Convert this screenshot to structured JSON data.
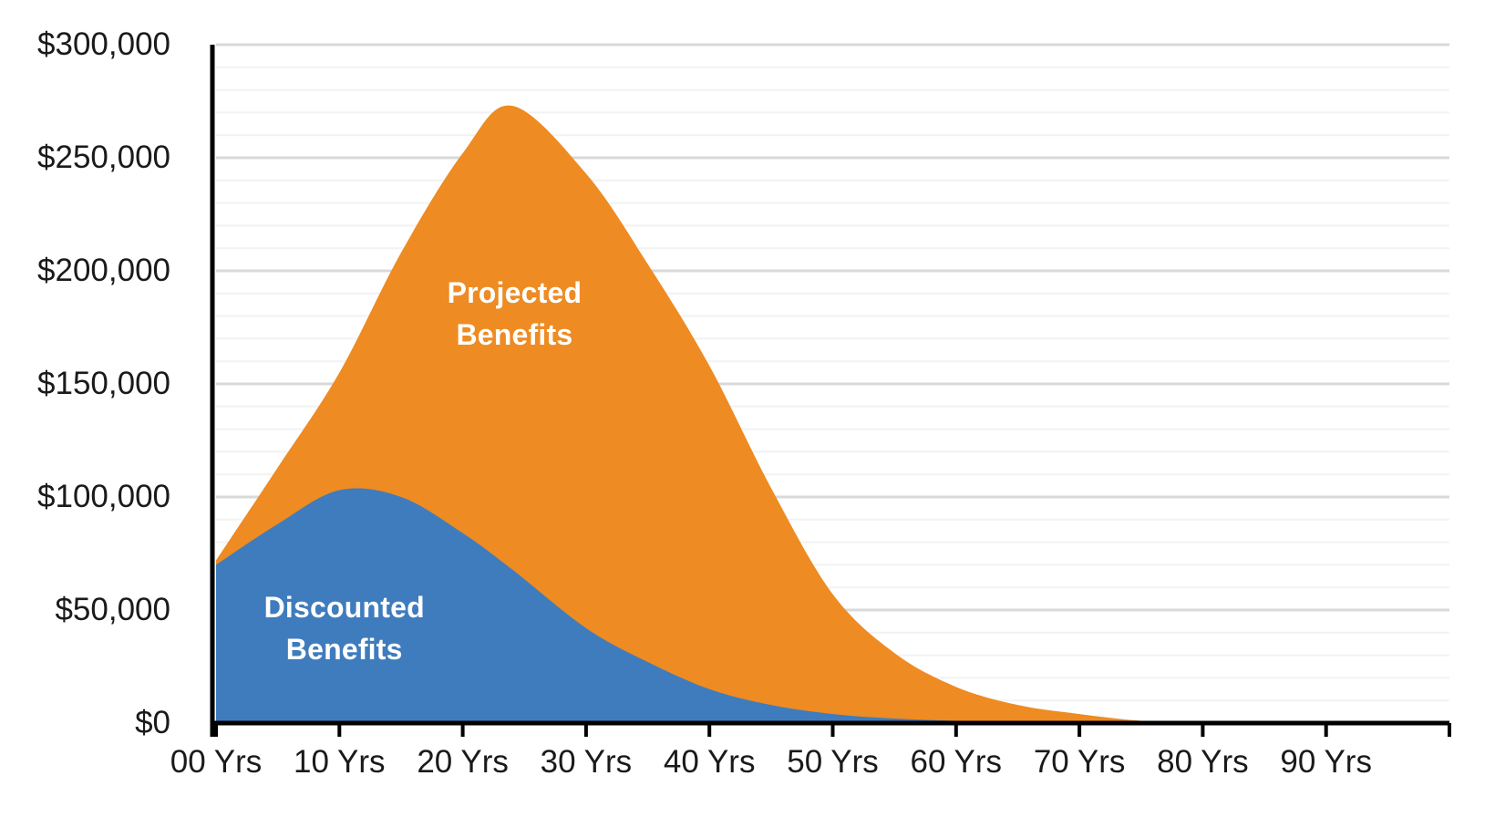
{
  "chart_data": {
    "type": "area",
    "title": "",
    "xlabel": "",
    "ylabel": "",
    "x_unit": "Years",
    "y_unit": "USD",
    "grid": "on",
    "legend_position": "none (series labeled by white text inside areas)",
    "x": [
      0,
      5,
      10,
      15,
      20,
      24,
      30,
      35,
      40,
      45,
      50,
      55,
      60,
      65,
      70,
      75,
      80,
      85,
      90
    ],
    "series": [
      {
        "name": "Projected Benefits",
        "color": "#EE8B22",
        "values": [
          72000,
          113000,
          155000,
          208000,
          252000,
          273000,
          243000,
          203000,
          158000,
          104000,
          57000,
          31000,
          16000,
          8000,
          4000,
          1000,
          0,
          0,
          0
        ]
      },
      {
        "name": "Discounted Benefits",
        "color": "#3F7CBD",
        "values": [
          70000,
          88000,
          103000,
          100000,
          84000,
          68000,
          42000,
          27000,
          15000,
          8000,
          4000,
          2000,
          1000,
          0,
          0,
          0,
          0,
          0,
          0
        ]
      }
    ],
    "x_axis": {
      "min": 0,
      "max": 100,
      "tick_step": 10,
      "tick_values": [
        0,
        10,
        20,
        30,
        40,
        50,
        60,
        70,
        80,
        90,
        100
      ],
      "tick_labels": [
        "00 Yrs",
        "10 Yrs",
        "20 Yrs",
        "30 Yrs",
        "40 Yrs",
        "50 Yrs",
        "60 Yrs",
        "70 Yrs",
        "80 Yrs",
        "90 Yrs",
        ""
      ]
    },
    "y_axis": {
      "min": 0,
      "max": 300000,
      "major_step": 50000,
      "minor_step": 10000,
      "tick_values": [
        0,
        50000,
        100000,
        150000,
        200000,
        250000,
        300000
      ],
      "tick_labels": [
        "$0",
        "$50,000",
        "$100,000",
        "$150,000",
        "$200,000",
        "$250,000",
        "$300,000"
      ]
    },
    "annotations": [
      {
        "text": "Projected\nBenefits",
        "x": 24.2,
        "y": 181000,
        "color": "#FFFFFF"
      },
      {
        "text": "Discounted\nBenefits",
        "x": 10.4,
        "y": 42000,
        "color": "#FFFFFF"
      }
    ],
    "colors": {
      "axis_line": "#000000",
      "tick_mark": "#000000",
      "major_gridline": "#D9D9D9",
      "minor_gridline": "#F2F2F2",
      "axis_label_text": "#1a1a1a",
      "background": "#FFFFFF"
    }
  }
}
